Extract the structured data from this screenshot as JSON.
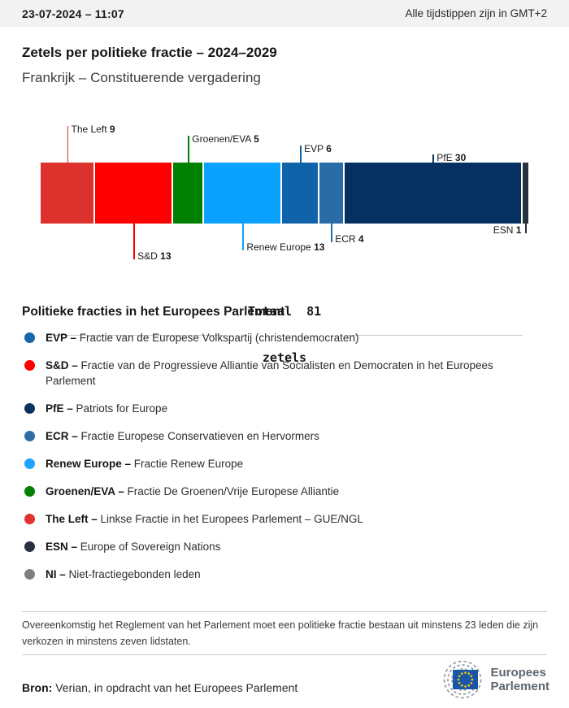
{
  "header": {
    "timestamp": "23-07-2024 – 11:07",
    "timezone_note": "Alle tijdstippen zijn in GMT+2"
  },
  "title": "Zetels per politieke fractie – 2024–2029",
  "subtitle": "Frankrijk – Constituerende vergadering",
  "chart_data": {
    "type": "bar",
    "variant": "horizontal-stacked",
    "title": "Zetels per politieke fractie – 2024–2029",
    "total_seats": 81,
    "total_lines": [
      "Totaal  81",
      "zetels"
    ],
    "segments": [
      {
        "name": "The Left",
        "seats": 9,
        "color": "#DC312C",
        "label_side": "top",
        "label_level": 0,
        "label_align": "right"
      },
      {
        "name": "S&D",
        "seats": 13,
        "color": "#FF0000",
        "label_side": "bottom",
        "label_level": 3,
        "label_align": "right"
      },
      {
        "name": "Groenen/EVA",
        "seats": 5,
        "color": "#008000",
        "label_side": "top",
        "label_level": 1,
        "label_align": "right"
      },
      {
        "name": "Renew Europe",
        "seats": 13,
        "color": "#0BA1FF",
        "label_side": "bottom",
        "label_level": 2,
        "label_align": "right"
      },
      {
        "name": "EVP",
        "seats": 6,
        "color": "#1063A9",
        "label_side": "top",
        "label_level": 2,
        "label_align": "right"
      },
      {
        "name": "ECR",
        "seats": 4,
        "color": "#2A6CA6",
        "label_side": "bottom",
        "label_level": 1,
        "label_align": "right"
      },
      {
        "name": "PfE",
        "seats": 30,
        "color": "#053060",
        "label_side": "top",
        "label_level": 3,
        "label_align": "right"
      },
      {
        "name": "ESN",
        "seats": 1,
        "color": "#28323E",
        "label_side": "bottom",
        "label_level": 0,
        "label_align": "left"
      }
    ]
  },
  "legend": {
    "title": "Politieke fracties in het Europees Parlement",
    "items": [
      {
        "label": "EVP –",
        "color": "#1866A9",
        "description": "Fractie van de Europese Volkspartij (christendemocraten)"
      },
      {
        "label": "S&D –",
        "color": "#FF0000",
        "description": "Fractie van de Progressieve Alliantie van Socialisten en Democraten in het Europees Parlement"
      },
      {
        "label": "PfE –",
        "color": "#0A3160",
        "description": "Patriots for Europe"
      },
      {
        "label": "ECR –",
        "color": "#2E6DA3",
        "description": "Fractie Europese Conservatieven en Hervormers"
      },
      {
        "label": "Renew Europe –",
        "color": "#1FA3FF",
        "description": "Fractie Renew Europe"
      },
      {
        "label": "Groenen/EVA –",
        "color": "#008000",
        "description": "Fractie De Groenen/Vrije Europese Alliantie"
      },
      {
        "label": "The Left –",
        "color": "#E23131",
        "description": "Linkse Fractie in het Europees Parlement – GUE/NGL"
      },
      {
        "label": "ESN –",
        "color": "#263240",
        "description": "Europe of Sovereign Nations"
      },
      {
        "label": "NI –",
        "color": "#7F7F7F",
        "description": "Niet-fractiegebonden leden"
      }
    ]
  },
  "footnote": "Overeenkomstig het Reglement van het Parlement moet een politieke fractie bestaan uit minstens 23 leden die zijn verkozen in minstens zeven lidstaten.",
  "source": {
    "label": "Bron:",
    "text": "Verian, in opdracht van het Europees Parlement"
  },
  "logo": {
    "name_line1": "Europees",
    "name_line2": "Parlement"
  }
}
